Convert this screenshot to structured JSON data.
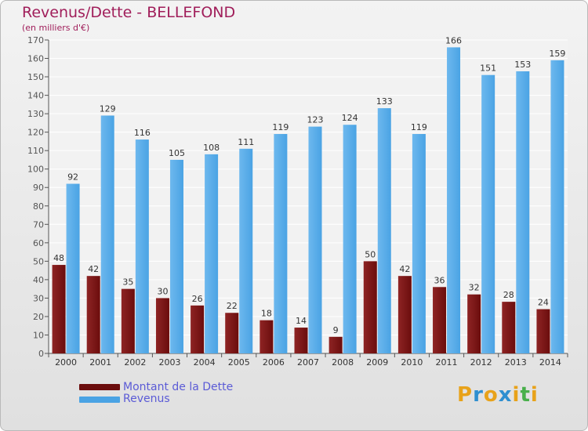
{
  "title": "Revenus/Dette - BELLEFOND",
  "subtitle": "(en milliers d'€)",
  "colors": {
    "debt": "#6b0d0d",
    "revenue": "#4aa3e4",
    "title": "#a01e5a",
    "legend_text": "#5b5bd6"
  },
  "logo": {
    "text": "Proxiti",
    "letters": [
      "P",
      "r",
      "o",
      "x",
      "i",
      "t",
      "i"
    ],
    "letter_colors": [
      "#e8a21a",
      "#2f8fd0",
      "#e8a21a",
      "#2f8fd0",
      "#e8a21a",
      "#48b04a",
      "#e8a21a"
    ]
  },
  "chart_data": {
    "type": "bar",
    "title": "Revenus/Dette - BELLEFOND",
    "subtitle": "(en milliers d'€)",
    "categories": [
      "2000",
      "2001",
      "2002",
      "2003",
      "2004",
      "2005",
      "2006",
      "2007",
      "2008",
      "2009",
      "2010",
      "2011",
      "2012",
      "2013",
      "2014"
    ],
    "series": [
      {
        "name": "Montant de la Dette",
        "color": "#6b0d0d",
        "values": [
          48,
          42,
          35,
          30,
          26,
          22,
          18,
          14,
          9,
          50,
          42,
          36,
          32,
          28,
          24
        ]
      },
      {
        "name": "Revenus",
        "color": "#4aa3e4",
        "values": [
          92,
          129,
          116,
          105,
          108,
          111,
          119,
          123,
          124,
          133,
          119,
          166,
          151,
          153,
          159
        ]
      }
    ],
    "ylim": [
      0,
      170
    ],
    "yticks": [
      0,
      10,
      20,
      30,
      40,
      50,
      60,
      70,
      80,
      90,
      100,
      110,
      120,
      130,
      140,
      150,
      160,
      170
    ],
    "grid": true,
    "legend": "bottom-left"
  }
}
